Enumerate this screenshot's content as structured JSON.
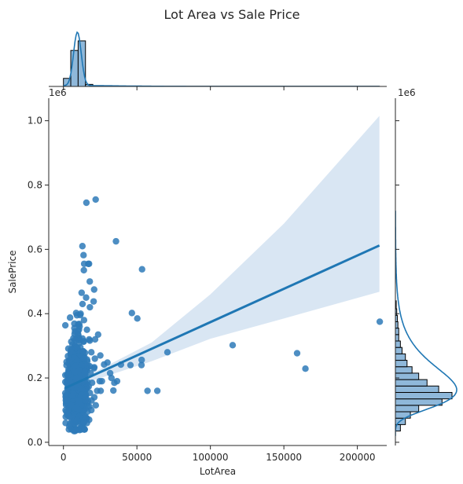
{
  "chart_data": {
    "type": "scatter",
    "title": "Lot Area vs Sale Price",
    "xlabel": "LotArea",
    "ylabel": "SalePrice",
    "x_offset_label": "1e6",
    "y_offset_label": "1e6",
    "xlim": [
      -10000,
      220000
    ],
    "ylim": [
      -10000,
      1070000
    ],
    "xticks": [
      0,
      50000,
      100000,
      150000,
      200000
    ],
    "xtick_labels": [
      "0",
      "50000",
      "100000",
      "150000",
      "200000"
    ],
    "yticks": [
      0,
      200000,
      400000,
      600000,
      800000,
      1000000
    ],
    "ytick_labels": [
      "0.0",
      "0.2",
      "0.4",
      "0.6",
      "0.8",
      "1.0"
    ],
    "colors": {
      "points": "#2e7ab8",
      "line": "#1f77b4",
      "ci_band": "#c5d8ec",
      "hist_fill": "#8fb8da",
      "hist_edge": "#000000"
    },
    "regression": {
      "line": [
        [
          1300,
          169000
        ],
        [
          215000,
          612000
        ]
      ],
      "ci_upper": [
        [
          1300,
          176000
        ],
        [
          20000,
          215000
        ],
        [
          60000,
          310000
        ],
        [
          100000,
          460000
        ],
        [
          150000,
          680000
        ],
        [
          215000,
          1015000
        ]
      ],
      "ci_lower": [
        [
          1300,
          160000
        ],
        [
          20000,
          192000
        ],
        [
          60000,
          252000
        ],
        [
          100000,
          322000
        ],
        [
          150000,
          385000
        ],
        [
          215000,
          468000
        ]
      ]
    },
    "points_outliers": [
      [
        215245,
        375000
      ],
      [
        164660,
        228950
      ],
      [
        159000,
        277000
      ],
      [
        115149,
        302000
      ],
      [
        70761,
        280000
      ],
      [
        63887,
        160000
      ],
      [
        57200,
        160000
      ],
      [
        53504,
        538000
      ],
      [
        53227,
        256000
      ],
      [
        53107,
        240000
      ],
      [
        50271,
        385000
      ],
      [
        46589,
        402000
      ],
      [
        45600,
        240000
      ],
      [
        39104,
        241500
      ],
      [
        36500,
        190000
      ],
      [
        35760,
        625000
      ],
      [
        34650,
        185000
      ],
      [
        33983,
        161000
      ],
      [
        32668,
        200000
      ],
      [
        31770,
        215000
      ],
      [
        29959,
        248000
      ],
      [
        27650,
        242000
      ],
      [
        26178,
        190000
      ],
      [
        25339,
        160000
      ],
      [
        25095,
        270000
      ],
      [
        24682,
        190000
      ],
      [
        23595,
        335000
      ],
      [
        22950,
        160000
      ],
      [
        21930,
        755000
      ],
      [
        21535,
        320000
      ],
      [
        21384,
        260000
      ],
      [
        20896,
        475000
      ],
      [
        20781,
        230000
      ],
      [
        20544,
        438000
      ],
      [
        15623,
        745000
      ],
      [
        17423,
        555000
      ],
      [
        16905,
        555000
      ],
      [
        17920,
        500000
      ],
      [
        14115,
        555000
      ],
      [
        12919,
        610000
      ],
      [
        13682,
        582000
      ],
      [
        13891,
        535000
      ],
      [
        15431,
        450000
      ],
      [
        12384,
        465000
      ],
      [
        13000,
        430000
      ],
      [
        9200,
        395000
      ],
      [
        11700,
        400000
      ],
      [
        14000,
        380000
      ],
      [
        17500,
        320000
      ],
      [
        19000,
        280000
      ],
      [
        18000,
        420000
      ],
      [
        11000,
        360000
      ],
      [
        16000,
        350000
      ],
      [
        5000,
        280000
      ],
      [
        3500,
        210000
      ],
      [
        2500,
        130000
      ],
      [
        18500,
        215000
      ],
      [
        19500,
        185000
      ],
      [
        21000,
        140000
      ],
      [
        22000,
        115000
      ],
      [
        19000,
        100000
      ],
      [
        17500,
        70000
      ],
      [
        16000,
        60000
      ],
      [
        15000,
        80000
      ],
      [
        1500,
        60000
      ],
      [
        2500,
        85000
      ],
      [
        4000,
        50000
      ],
      [
        6000,
        40000
      ],
      [
        8000,
        35000
      ],
      [
        11000,
        38000
      ],
      [
        12500,
        45000
      ],
      [
        14000,
        62000
      ],
      [
        7200,
        34900
      ],
      [
        8500,
        37900
      ],
      [
        10000,
        40000
      ]
    ],
    "cluster": {
      "count": 1100,
      "note": "dense mass of points",
      "x_range": [
        1300,
        21000
      ],
      "y_core": [
        60000,
        340000
      ]
    },
    "histogram_x": {
      "bins": [
        [
          0,
          5000,
          47
        ],
        [
          5000,
          10000,
          210
        ],
        [
          10000,
          15000,
          266
        ],
        [
          15000,
          20000,
          12
        ],
        [
          20000,
          25000,
          4
        ],
        [
          25000,
          215000,
          1
        ]
      ],
      "kde_peak_x": 9500
    },
    "histogram_y": {
      "bins": [
        [
          35000,
          55000,
          3
        ],
        [
          55000,
          75000,
          6
        ],
        [
          75000,
          95000,
          9
        ],
        [
          95000,
          115000,
          14
        ],
        [
          115000,
          135000,
          28
        ],
        [
          135000,
          155000,
          34
        ],
        [
          155000,
          175000,
          26
        ],
        [
          175000,
          195000,
          19
        ],
        [
          195000,
          215000,
          14
        ],
        [
          215000,
          235000,
          10
        ],
        [
          235000,
          255000,
          7
        ],
        [
          255000,
          275000,
          6
        ],
        [
          275000,
          295000,
          4
        ],
        [
          295000,
          315000,
          3
        ],
        [
          315000,
          335000,
          2
        ],
        [
          335000,
          355000,
          2
        ],
        [
          355000,
          375000,
          1.5
        ],
        [
          375000,
          395000,
          1.2
        ],
        [
          395000,
          415000,
          0.8
        ],
        [
          415000,
          440000,
          0.5
        ]
      ]
    }
  }
}
